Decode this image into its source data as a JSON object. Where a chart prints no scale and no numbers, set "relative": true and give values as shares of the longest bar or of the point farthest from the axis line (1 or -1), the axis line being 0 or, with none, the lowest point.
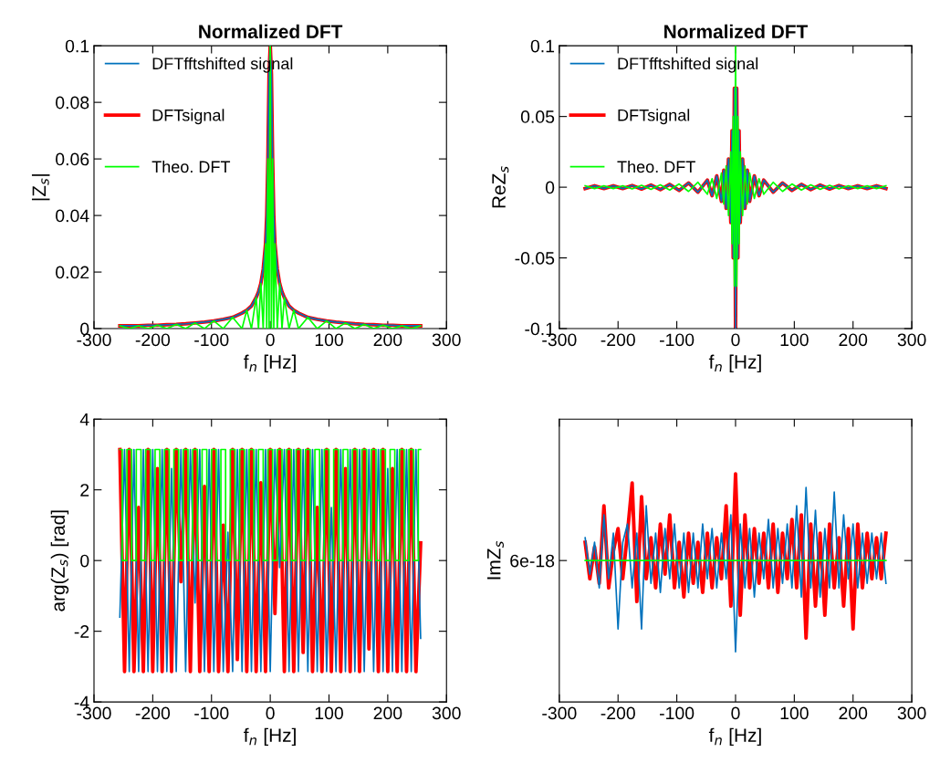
{
  "chart_data": [
    {
      "type": "line",
      "title": "Normalized DFT",
      "xlabel": "f$_{n}$ [Hz]",
      "ylabel": "|Z$_{s}$|",
      "x": [
        -256,
        -240,
        -224,
        -208,
        -192,
        -176,
        -160,
        -144,
        -128,
        -112,
        -96,
        -80,
        -64,
        -48,
        -40,
        -32,
        -24,
        -20,
        -16,
        -12,
        -8,
        -6,
        -4,
        -2,
        0,
        2,
        4,
        6,
        8,
        12,
        16,
        20,
        24,
        32,
        40,
        48,
        64,
        80,
        96,
        112,
        128,
        144,
        160,
        176,
        192,
        208,
        224,
        240,
        256
      ],
      "series": [
        {
          "name": "DFTfftshifted signal",
          "color": "#0072bd",
          "values": [
            0.001,
            0.001,
            0.001,
            0.0012,
            0.0012,
            0.0014,
            0.0015,
            0.0017,
            0.002,
            0.0023,
            0.0027,
            0.0033,
            0.004,
            0.0055,
            0.0065,
            0.008,
            0.011,
            0.013,
            0.016,
            0.021,
            0.03,
            0.04,
            0.06,
            0.09,
            0.1,
            0.09,
            0.06,
            0.04,
            0.03,
            0.021,
            0.016,
            0.013,
            0.011,
            0.008,
            0.0065,
            0.0055,
            0.004,
            0.0033,
            0.0027,
            0.0023,
            0.002,
            0.0017,
            0.0015,
            0.0014,
            0.0012,
            0.0012,
            0.001,
            0.001,
            0.001
          ]
        },
        {
          "name": "DFTsignal",
          "color": "#ff0000",
          "values": [
            0.001,
            0.001,
            0.001,
            0.0012,
            0.0012,
            0.0014,
            0.0015,
            0.0017,
            0.002,
            0.0023,
            0.0027,
            0.0033,
            0.004,
            0.0055,
            0.0065,
            0.008,
            0.011,
            0.013,
            0.016,
            0.021,
            0.03,
            0.04,
            0.06,
            0.09,
            0.1,
            0.09,
            0.06,
            0.04,
            0.03,
            0.021,
            0.016,
            0.013,
            0.011,
            0.008,
            0.0065,
            0.0055,
            0.004,
            0.0033,
            0.0027,
            0.0023,
            0.002,
            0.0017,
            0.0015,
            0.0014,
            0.0012,
            0.0012,
            0.001,
            0.001,
            0.001
          ]
        },
        {
          "name": "Theo. DFT",
          "color": "#00ff00",
          "values": [
            0.001,
            0,
            0.001,
            0,
            0.0012,
            0,
            0.0015,
            0,
            0.002,
            0,
            0.0027,
            0,
            0.004,
            0,
            0.0065,
            0,
            0.011,
            0,
            0.016,
            0,
            0.03,
            0,
            0.06,
            0,
            0.1,
            0,
            0.06,
            0,
            0.03,
            0,
            0.016,
            0,
            0.011,
            0,
            0.0065,
            0,
            0.004,
            0,
            0.0027,
            0,
            0.002,
            0,
            0.0015,
            0,
            0.0012,
            0,
            0.001,
            0,
            0.001
          ]
        }
      ],
      "xlim": [
        -300,
        300
      ],
      "xticks": [
        -300,
        -200,
        -100,
        0,
        100,
        200,
        300
      ],
      "ylim": [
        0,
        0.1
      ],
      "yticks": [
        0,
        0.02,
        0.04,
        0.06,
        0.08,
        0.1
      ],
      "legend": "top left"
    },
    {
      "type": "line",
      "title": "Normalized DFT",
      "xlabel": "f$_{n}$ [Hz]",
      "ylabel": "ReZ$_{s}$",
      "x": [
        -256,
        -240,
        -224,
        -208,
        -192,
        -176,
        -160,
        -144,
        -128,
        -112,
        -96,
        -80,
        -64,
        -48,
        -40,
        -32,
        -24,
        -20,
        -16,
        -12,
        -8,
        -6,
        -4,
        -2,
        0,
        2,
        4,
        6,
        8,
        12,
        16,
        20,
        24,
        32,
        40,
        48,
        64,
        80,
        96,
        112,
        128,
        144,
        160,
        176,
        192,
        208,
        224,
        240,
        256
      ],
      "series": [
        {
          "name": "DFTfftshifted signal",
          "color": "#0072bd",
          "values": [
            -0.001,
            0.001,
            -0.001,
            0.001,
            -0.001,
            0.0012,
            -0.0013,
            0.0015,
            -0.0017,
            0.002,
            -0.0023,
            0.003,
            -0.0035,
            0.005,
            -0.006,
            0.008,
            -0.01,
            0.012,
            -0.015,
            0.02,
            -0.025,
            0.04,
            -0.05,
            0.07,
            -0.1,
            0.07,
            -0.05,
            0.04,
            -0.025,
            0.02,
            -0.015,
            0.012,
            -0.01,
            0.008,
            -0.006,
            0.005,
            -0.0035,
            0.003,
            -0.0023,
            0.002,
            -0.0017,
            0.0015,
            -0.0013,
            0.0012,
            -0.001,
            0.001,
            -0.001,
            0.001,
            -0.001
          ]
        },
        {
          "name": "DFTsignal",
          "color": "#ff0000",
          "values": [
            -0.001,
            0.001,
            -0.001,
            0.001,
            -0.001,
            0.0012,
            -0.0013,
            0.0015,
            -0.0017,
            0.002,
            -0.0023,
            0.003,
            -0.0035,
            0.005,
            -0.006,
            0.008,
            -0.01,
            0.012,
            -0.015,
            0.02,
            -0.025,
            0.04,
            -0.05,
            0.07,
            -0.1,
            0.07,
            -0.05,
            0.04,
            -0.025,
            0.02,
            -0.015,
            0.012,
            -0.01,
            0.008,
            -0.006,
            0.005,
            -0.0035,
            0.003,
            -0.0023,
            0.002,
            -0.0017,
            0.0015,
            -0.0013,
            0.0012,
            -0.001,
            0.001,
            -0.001,
            0.001,
            -0.001
          ]
        },
        {
          "name": "Theo. DFT",
          "color": "#00ff00",
          "values": [
            0.001,
            -0.001,
            0.001,
            -0.001,
            0.001,
            -0.0012,
            0.0013,
            -0.0015,
            0.0017,
            -0.002,
            0.0023,
            -0.003,
            0.0035,
            -0.005,
            0.006,
            -0.008,
            0.01,
            -0.012,
            0.015,
            -0.02,
            0.025,
            -0.04,
            0.05,
            -0.07,
            0.1,
            -0.07,
            0.05,
            -0.04,
            0.025,
            -0.02,
            0.015,
            -0.012,
            0.01,
            -0.008,
            0.006,
            -0.005,
            0.0035,
            -0.003,
            0.0023,
            -0.002,
            0.0017,
            -0.0015,
            0.0013,
            -0.0012,
            0.001,
            -0.001,
            0.001,
            -0.001,
            0.001
          ]
        }
      ],
      "xlim": [
        -300,
        300
      ],
      "xticks": [
        -300,
        -200,
        -100,
        0,
        100,
        200,
        300
      ],
      "ylim": [
        -0.1,
        0.1
      ],
      "yticks": [
        -0.1,
        -0.05,
        0,
        0.05,
        0.1
      ],
      "legend": "top left"
    },
    {
      "type": "line",
      "xlabel": "f$_{n}$ [Hz]",
      "ylabel": "arg(Z$_{s}$) [rad]",
      "x": [
        -256,
        -248,
        -240,
        -232,
        -224,
        -216,
        -208,
        -200,
        -192,
        -184,
        -176,
        -168,
        -160,
        -152,
        -144,
        -136,
        -128,
        -120,
        -112,
        -104,
        -96,
        -88,
        -80,
        -72,
        -64,
        -56,
        -48,
        -40,
        -32,
        -24,
        -16,
        -8,
        0,
        8,
        16,
        24,
        32,
        40,
        48,
        56,
        64,
        72,
        80,
        88,
        96,
        104,
        112,
        120,
        128,
        136,
        144,
        152,
        160,
        168,
        176,
        184,
        192,
        200,
        208,
        216,
        224,
        232,
        240,
        248,
        256
      ],
      "series": [
        {
          "color": "#0072bd",
          "values": [
            -1.6,
            3.14,
            -3.14,
            3.14,
            -3.14,
            3.14,
            -3.14,
            3.14,
            -3.14,
            3.14,
            -3.14,
            2.6,
            -3.14,
            3.14,
            -3.14,
            3.14,
            -1.2,
            3.14,
            -3.14,
            3.14,
            -3.14,
            3.14,
            -3.14,
            0.8,
            -3.14,
            3.14,
            -3.14,
            3.14,
            -3.14,
            3.14,
            -3.14,
            3.14,
            -3.14,
            3.14,
            -0.2,
            3.14,
            -3.14,
            3.14,
            -3.14,
            3.14,
            -3.14,
            3.14,
            -3.14,
            3.14,
            -3.14,
            1.5,
            -3.14,
            3.14,
            -3.14,
            3.14,
            -3.14,
            3.14,
            -3.14,
            3.14,
            -3.14,
            3.14,
            -3.14,
            2.6,
            -3.14,
            3.14,
            -3.14,
            3.14,
            -3.14,
            3.14,
            -2.2
          ]
        },
        {
          "color": "#ff0000",
          "values": [
            3.14,
            -3.14,
            3.14,
            -3.14,
            1.5,
            -3.14,
            3.14,
            -3.14,
            2.6,
            -3.14,
            3.14,
            -3.14,
            3.14,
            -0.6,
            3.14,
            -3.14,
            3.14,
            -3.14,
            2.1,
            -3.14,
            3.14,
            -3.14,
            1,
            -3.14,
            3.14,
            -2.8,
            3.14,
            -3.14,
            3.14,
            -3.14,
            2.2,
            -3.14,
            3.14,
            -1.5,
            3.14,
            -3.14,
            3.14,
            -3.14,
            3.14,
            -2.6,
            3.14,
            -3.14,
            1.5,
            -3.14,
            3.14,
            -3.14,
            3.14,
            -3.14,
            2.6,
            -3.14,
            3.14,
            -3.14,
            3.14,
            -2.5,
            3.14,
            -3.14,
            3.14,
            -3.14,
            2.6,
            -3.14,
            3.14,
            -3.14,
            3.14,
            -3.14,
            0.5
          ]
        },
        {
          "type": "step",
          "color": "#00ff00",
          "values": [
            3.14,
            0,
            3.14,
            0,
            3.14,
            0,
            3.14,
            0,
            3.14,
            0,
            3.14,
            0,
            3.14,
            0,
            3.14,
            0,
            3.14,
            0,
            3.14,
            0,
            3.14,
            0,
            3.14,
            0,
            3.14,
            0,
            3.14,
            0,
            3.14,
            0,
            3.14,
            0,
            3.14,
            0,
            3.14,
            0,
            3.14,
            0,
            3.14,
            0,
            3.14,
            0,
            3.14,
            0,
            3.14,
            0,
            3.14,
            0,
            3.14,
            0,
            3.14,
            0,
            3.14,
            0,
            3.14,
            0,
            3.14,
            0,
            3.14,
            0,
            3.14,
            0,
            3.14,
            0,
            3.14
          ]
        }
      ],
      "xlim": [
        -300,
        300
      ],
      "xticks": [
        -300,
        -200,
        -100,
        0,
        100,
        200,
        300
      ],
      "ylim": [
        -4,
        4
      ],
      "yticks": [
        -4,
        -2,
        0,
        2,
        4
      ]
    },
    {
      "type": "line",
      "relative": true,
      "xlabel": "f$_{n}$ [Hz]",
      "ylabel": "ImZ$_{s}$",
      "x": [
        -256,
        -248,
        -240,
        -232,
        -224,
        -216,
        -208,
        -200,
        -192,
        -184,
        -176,
        -168,
        -160,
        -152,
        -144,
        -136,
        -128,
        -120,
        -112,
        -104,
        -96,
        -88,
        -80,
        -72,
        -64,
        -56,
        -48,
        -40,
        -32,
        -24,
        -16,
        -8,
        0,
        8,
        16,
        24,
        32,
        40,
        48,
        56,
        64,
        72,
        80,
        88,
        96,
        104,
        112,
        120,
        128,
        136,
        144,
        152,
        160,
        168,
        176,
        184,
        192,
        200,
        208,
        216,
        224,
        232,
        240,
        248,
        256
      ],
      "series": [
        {
          "color": "#0072bd",
          "values": [
            0.25,
            -0.15,
            0.2,
            -0.3,
            0.5,
            -0.2,
            0.3,
            -0.75,
            0.2,
            0.4,
            -0.3,
            0.3,
            -0.75,
            0.6,
            -0.25,
            0.3,
            -0.35,
            0.35,
            -0.2,
            0.4,
            -0.3,
            0.3,
            -0.35,
            0.3,
            -0.3,
            0.4,
            -0.2,
            0.35,
            -0.3,
            0.3,
            -0.2,
            0.5,
            -1,
            0.4,
            -0.3,
            0.35,
            -0.4,
            0.3,
            -0.2,
            0.45,
            -0.3,
            0.35,
            -0.25,
            0.4,
            -0.3,
            0.6,
            -0.4,
            0.8,
            -0.3,
            0.55,
            -0.4,
            0.35,
            -0.3,
            0.75,
            -0.3,
            0.5,
            -0.2,
            0.4,
            -0.3,
            0.3,
            -0.25,
            0.3,
            -0.2,
            0.3,
            -0.25
          ]
        },
        {
          "color": "#ff0000",
          "values": [
            0.2,
            -0.2,
            0.15,
            -0.25,
            0.6,
            -0.3,
            0.1,
            0.35,
            -0.2,
            0.3,
            0.85,
            -0.45,
            0.7,
            -0.2,
            0.25,
            -0.3,
            0.4,
            -0.15,
            0.5,
            -0.3,
            0.2,
            -0.4,
            0.3,
            -0.25,
            0.2,
            -0.35,
            0.3,
            -0.3,
            0.25,
            -0.2,
            0.6,
            -0.5,
            0.95,
            -0.6,
            0.5,
            -0.3,
            0.35,
            -0.25,
            0.3,
            -0.3,
            0.4,
            -0.35,
            0.3,
            -0.2,
            0.45,
            -0.3,
            0.5,
            -0.85,
            0.4,
            -0.5,
            0.3,
            -0.6,
            0.4,
            -0.3,
            0.25,
            -0.5,
            0.35,
            -0.75,
            0.4,
            -0.3,
            0.3,
            -0.2,
            0.25,
            -0.2,
            0.3
          ]
        },
        {
          "color": "#00ff00",
          "x": [
            -256,
            256
          ],
          "values": [
            0,
            0
          ]
        }
      ],
      "xlim": [
        -300,
        300
      ],
      "xticks": [
        -300,
        -200,
        -100,
        0,
        100,
        200,
        300
      ],
      "annotations": [
        "6e-18"
      ]
    }
  ]
}
